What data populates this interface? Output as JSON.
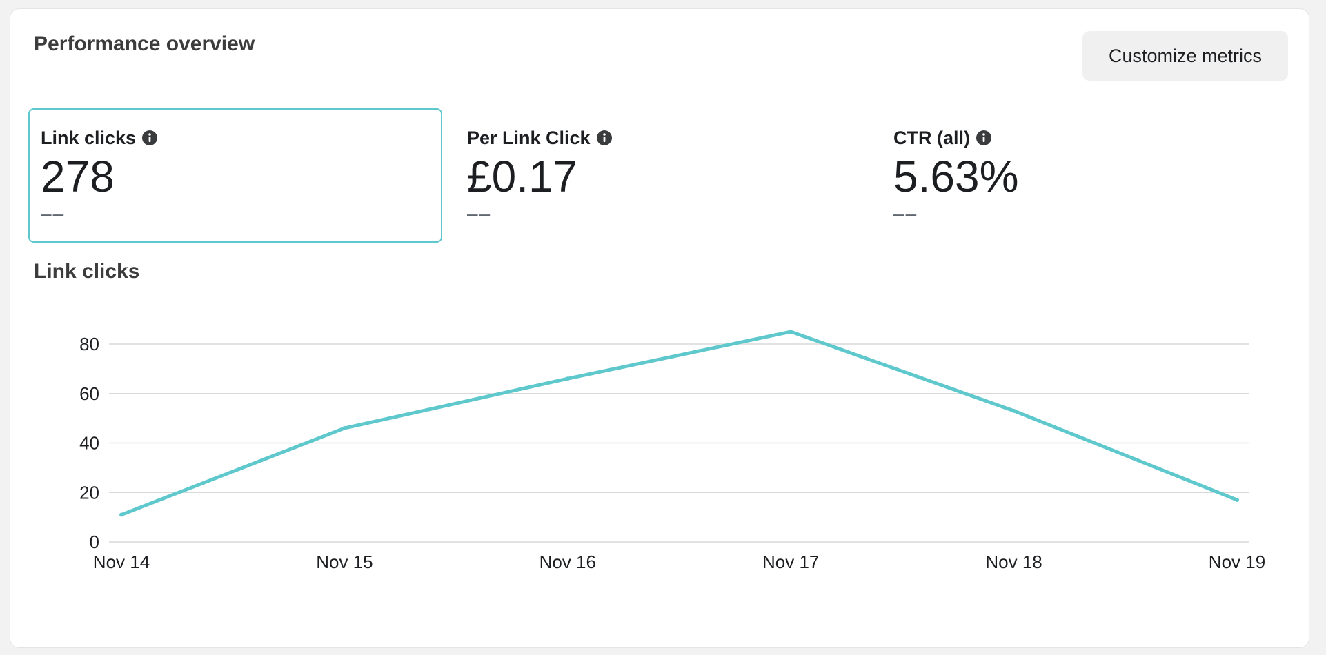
{
  "card": {
    "title": "Performance overview",
    "customize_label": "Customize metrics"
  },
  "metrics": [
    {
      "label": "Link clicks",
      "value": "278",
      "delta": "––",
      "selected": true
    },
    {
      "label": "Per Link Click",
      "value": "£0.17",
      "delta": "––",
      "selected": false
    },
    {
      "label": "CTR (all)",
      "value": "5.63%",
      "delta": "––",
      "selected": false
    }
  ],
  "icons": {
    "info": "info-icon"
  },
  "colors": {
    "accent": "#5ec8cc",
    "grid": "#d9d9d9",
    "text": "#1c1e21"
  },
  "chart_data": {
    "type": "line",
    "title": "Link clicks",
    "categories": [
      "Nov 14",
      "Nov 15",
      "Nov 16",
      "Nov 17",
      "Nov 18",
      "Nov 19"
    ],
    "series": [
      {
        "values": [
          11,
          46,
          66,
          85,
          53,
          17
        ]
      }
    ],
    "ylim": [
      0,
      80
    ],
    "yticks": [
      0,
      20,
      40,
      60,
      80
    ],
    "grid": true
  }
}
